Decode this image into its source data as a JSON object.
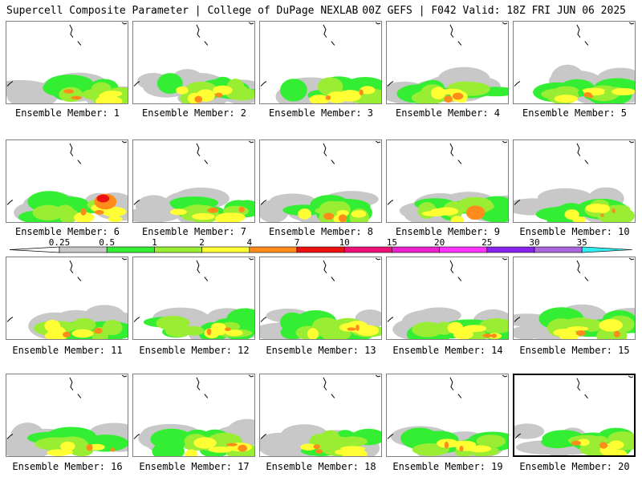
{
  "header": {
    "left": "Supercell Composite Parameter | College of DuPage NEXLAB",
    "right": "00Z GEFS | F042 Valid: 18Z FRI JUN 06 2025"
  },
  "panels": [
    {
      "label": "Ensemble Member: 1"
    },
    {
      "label": "Ensemble Member: 2"
    },
    {
      "label": "Ensemble Member: 3"
    },
    {
      "label": "Ensemble Member: 4"
    },
    {
      "label": "Ensemble Member: 5"
    },
    {
      "label": "Ensemble Member: 6"
    },
    {
      "label": "Ensemble Member: 7"
    },
    {
      "label": "Ensemble Member: 8"
    },
    {
      "label": "Ensemble Member: 9"
    },
    {
      "label": "Ensemble Member: 10"
    },
    {
      "label": "Ensemble Member: 11"
    },
    {
      "label": "Ensemble Member: 12"
    },
    {
      "label": "Ensemble Member: 13"
    },
    {
      "label": "Ensemble Member: 14"
    },
    {
      "label": "Ensemble Member: 15"
    },
    {
      "label": "Ensemble Member: 16"
    },
    {
      "label": "Ensemble Member: 17"
    },
    {
      "label": "Ensemble Member: 18"
    },
    {
      "label": "Ensemble Member: 19"
    },
    {
      "label": "Ensemble Member: 20",
      "selected": true
    }
  ],
  "colorbar": {
    "ticks": [
      "0.25",
      "0.5",
      "1",
      "2",
      "4",
      "7",
      "10",
      "15",
      "20",
      "25",
      "30",
      "35"
    ],
    "colors": [
      "#c8c8c8",
      "#33ee33",
      "#99ee33",
      "#ffff33",
      "#ff8c1a",
      "#ee1111",
      "#ee1177",
      "#ee22cc",
      "#ff33ff",
      "#8822ee",
      "#aa66dd",
      "#33eeee"
    ]
  }
}
